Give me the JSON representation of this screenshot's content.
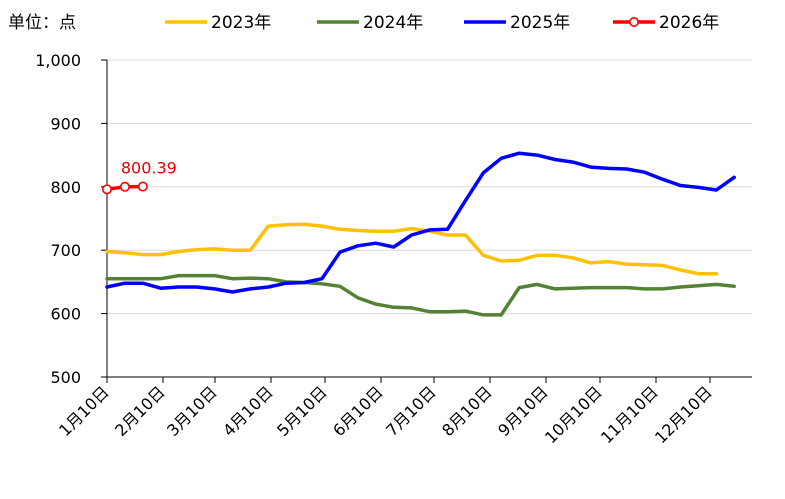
{
  "chart_data": {
    "type": "line",
    "unit_label": "单位：点",
    "ylim": [
      500,
      1000
    ],
    "yticks": [
      "1,000",
      "900",
      "800",
      "700",
      "600",
      "500"
    ],
    "ytick_values": [
      1000,
      900,
      800,
      700,
      600,
      500
    ],
    "xticks": [
      "1月10日",
      "2月10日",
      "3月10日",
      "4月10日",
      "5月10日",
      "6月10日",
      "7月10日",
      "8月10日",
      "9月10日",
      "10月10日",
      "11月10日",
      "12月10日"
    ],
    "grid": "horizontal",
    "legend_position": "top",
    "annotation": {
      "text": "800.39",
      "series": "2026年",
      "point_index": 2
    },
    "series": [
      {
        "name": "2023年",
        "color": "#FFC000",
        "values": [
          698,
          696,
          693,
          693,
          698,
          701,
          702,
          700,
          700,
          738,
          740,
          741,
          738,
          733,
          731,
          730,
          730,
          734,
          730,
          724,
          724,
          692,
          683,
          684,
          692,
          692,
          688,
          680,
          682,
          678,
          677,
          676,
          669,
          663,
          663
        ]
      },
      {
        "name": "2024年",
        "color": "#548235",
        "values": [
          655,
          655,
          655,
          655,
          660,
          660,
          660,
          655,
          656,
          655,
          650,
          649,
          647,
          643,
          625,
          615,
          610,
          609,
          603,
          603,
          604,
          598,
          598,
          641,
          646,
          639,
          640,
          641,
          641,
          641,
          639,
          639,
          642,
          644,
          646,
          643
        ]
      },
      {
        "name": "2025年",
        "color": "#0000FF",
        "values": [
          642,
          648,
          648,
          640,
          642,
          642,
          639,
          634,
          639,
          642,
          648,
          649,
          655,
          697,
          707,
          711,
          705,
          724,
          732,
          733,
          778,
          822,
          845,
          853,
          850,
          843,
          839,
          831,
          829,
          828,
          823,
          812,
          802,
          799,
          795,
          815
        ]
      },
      {
        "name": "2026年",
        "color": "#FF0000",
        "values": [
          796,
          800,
          800.39
        ]
      }
    ]
  }
}
